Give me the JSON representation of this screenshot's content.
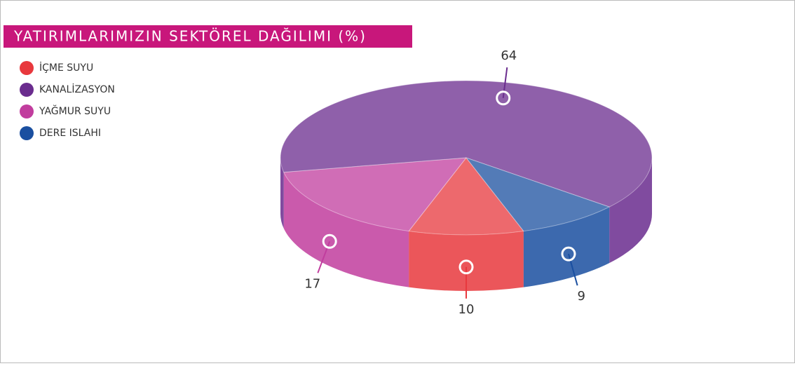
{
  "chart_data": {
    "type": "pie",
    "title": "YATIRIMLARIMIZIN SEKTÖREL DAĞILIMI (%)",
    "categories": [
      "İÇME SUYU",
      "KANALİZASYON",
      "YAĞMUR SUYU",
      "DERE ISLAHI"
    ],
    "values": [
      10,
      64,
      17,
      9
    ],
    "colors": [
      "#e8383d",
      "#6a2c8e",
      "#c13d9e",
      "#1a4fa0"
    ],
    "legend": "top-left"
  }
}
